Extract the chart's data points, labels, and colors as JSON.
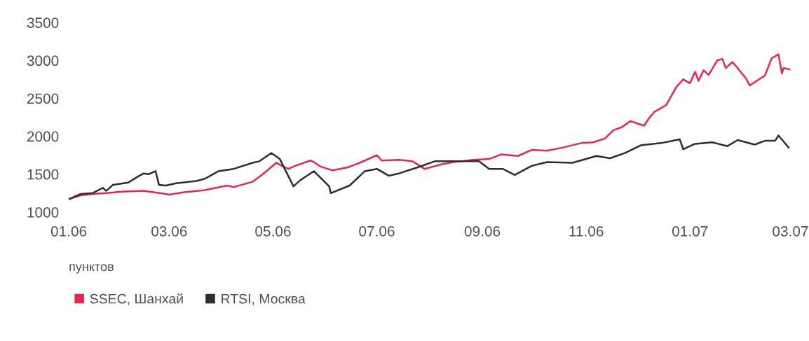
{
  "chart_data": {
    "type": "line",
    "annotations": [
      "пунктов"
    ],
    "xlim": [
      "2006-01-01",
      "2007-03-01"
    ],
    "ylim": [
      1000,
      3500
    ],
    "xticks": [
      {
        "value": "2006-01",
        "label": "01.06"
      },
      {
        "value": "2006-03",
        "label": "03.06"
      },
      {
        "value": "2006-05",
        "label": "05.06"
      },
      {
        "value": "2006-07",
        "label": "07.06"
      },
      {
        "value": "2006-09",
        "label": "09.06"
      },
      {
        "value": "2006-11",
        "label": "11.06"
      },
      {
        "value": "2007-01",
        "label": "01.07"
      },
      {
        "value": "2007-03",
        "label": "03.07"
      }
    ],
    "yticks": [
      1000,
      1500,
      2000,
      2500,
      3000,
      3500
    ],
    "grid": false,
    "legend": "bottom left",
    "marker": "none",
    "line_style": "solid",
    "series": [
      {
        "name": "SSEC, Шанхай",
        "color": "#e8264f",
        "x": [
          "2006-01-01",
          "2006-01-08",
          "2006-01-15",
          "2006-01-23",
          "2006-02-01",
          "2006-02-14",
          "2006-02-27",
          "2006-03-01",
          "2006-03-09",
          "2006-03-22",
          "2006-04-04",
          "2006-04-08",
          "2006-04-19",
          "2006-04-25",
          "2006-05-03",
          "2006-05-07",
          "2006-05-10",
          "2006-05-14",
          "2006-05-23",
          "2006-05-25",
          "2006-05-29",
          "2006-06-05",
          "2006-06-14",
          "2006-06-21",
          "2006-06-27",
          "2006-07-01",
          "2006-07-04",
          "2006-07-14",
          "2006-07-22",
          "2006-07-29",
          "2006-08-08",
          "2006-08-15",
          "2006-08-27",
          "2006-09-05",
          "2006-09-12",
          "2006-09-22",
          "2006-09-30",
          "2006-10-09",
          "2006-10-18",
          "2006-10-29",
          "2006-11-05",
          "2006-11-12",
          "2006-11-17",
          "2006-11-22",
          "2006-11-27",
          "2006-12-05",
          "2006-12-08",
          "2006-12-11",
          "2006-12-18",
          "2006-12-24",
          "2006-12-28",
          "2007-01-01",
          "2007-01-04",
          "2007-01-06",
          "2007-01-09",
          "2007-01-12",
          "2007-01-17",
          "2007-01-20",
          "2007-01-22",
          "2007-01-26",
          "2007-02-03",
          "2007-02-05",
          "2007-02-14",
          "2007-02-18",
          "2007-02-22",
          "2007-02-24",
          "2007-02-25",
          "2007-03-01"
        ],
        "values": [
          1170,
          1220,
          1240,
          1250,
          1270,
          1280,
          1240,
          1230,
          1260,
          1290,
          1350,
          1330,
          1400,
          1500,
          1650,
          1600,
          1570,
          1610,
          1680,
          1660,
          1600,
          1550,
          1590,
          1650,
          1710,
          1750,
          1680,
          1690,
          1670,
          1570,
          1630,
          1660,
          1690,
          1700,
          1760,
          1740,
          1820,
          1810,
          1850,
          1910,
          1920,
          1970,
          2080,
          2120,
          2200,
          2140,
          2240,
          2320,
          2410,
          2650,
          2750,
          2700,
          2850,
          2730,
          2870,
          2810,
          3000,
          3020,
          2900,
          2980,
          2760,
          2670,
          2800,
          3030,
          3080,
          2830,
          2900,
          2880
        ]
      },
      {
        "name": "RTSI, Москва",
        "color": "#2b2d33",
        "x": [
          "2006-01-01",
          "2006-01-08",
          "2006-01-15",
          "2006-01-21",
          "2006-01-23",
          "2006-01-27",
          "2006-02-05",
          "2006-02-10",
          "2006-02-14",
          "2006-02-17",
          "2006-02-21",
          "2006-02-23",
          "2006-02-27",
          "2006-03-05",
          "2006-03-13",
          "2006-03-17",
          "2006-03-22",
          "2006-03-30",
          "2006-04-08",
          "2006-04-19",
          "2006-04-23",
          "2006-04-30",
          "2006-05-05",
          "2006-05-13",
          "2006-05-17",
          "2006-05-25",
          "2006-06-03",
          "2006-06-04",
          "2006-06-15",
          "2006-06-24",
          "2006-07-01",
          "2006-07-08",
          "2006-07-14",
          "2006-07-25",
          "2006-08-04",
          "2006-08-10",
          "2006-08-23",
          "2006-08-30",
          "2006-09-05",
          "2006-09-13",
          "2006-09-20",
          "2006-09-30",
          "2006-10-09",
          "2006-10-24",
          "2006-11-07",
          "2006-11-15",
          "2006-11-24",
          "2006-12-03",
          "2006-12-15",
          "2006-12-26",
          "2006-12-28",
          "2007-01-04",
          "2007-01-14",
          "2007-01-23",
          "2007-01-29",
          "2007-02-08",
          "2007-02-14",
          "2007-02-20",
          "2007-02-22",
          "2007-02-28"
        ],
        "values": [
          1170,
          1240,
          1250,
          1320,
          1280,
          1360,
          1390,
          1460,
          1510,
          1500,
          1540,
          1360,
          1350,
          1380,
          1400,
          1410,
          1440,
          1540,
          1570,
          1650,
          1670,
          1780,
          1700,
          1340,
          1420,
          1540,
          1340,
          1250,
          1350,
          1540,
          1570,
          1480,
          1510,
          1590,
          1670,
          1670,
          1670,
          1670,
          1570,
          1570,
          1490,
          1610,
          1660,
          1650,
          1740,
          1710,
          1780,
          1880,
          1910,
          1960,
          1830,
          1900,
          1920,
          1870,
          1950,
          1890,
          1940,
          1940,
          2010,
          1850
        ]
      }
    ]
  }
}
